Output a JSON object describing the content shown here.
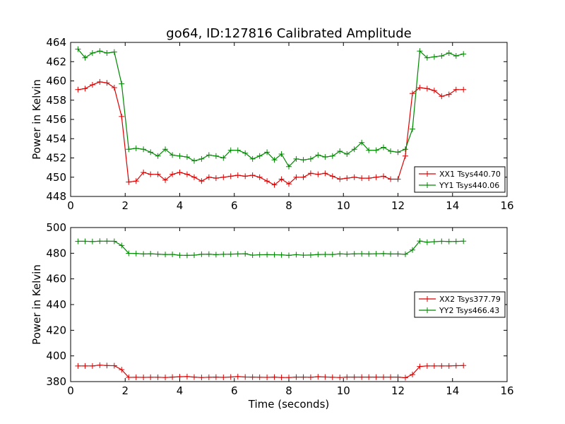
{
  "chart_data": [
    {
      "type": "line",
      "title": "go64, ID:127816 Calibrated Amplitude",
      "xlabel": "",
      "ylabel": "Power in Kelvin",
      "xlim": [
        0,
        16
      ],
      "ylim": [
        448,
        464
      ],
      "xticks": [
        0,
        2,
        4,
        6,
        8,
        10,
        12,
        14,
        16
      ],
      "yticks": [
        448,
        450,
        452,
        454,
        456,
        458,
        460,
        462,
        464
      ],
      "grid": false,
      "legend_position": "lower-right",
      "x": [
        0.27,
        0.53,
        0.8,
        1.07,
        1.33,
        1.6,
        1.87,
        2.13,
        2.4,
        2.67,
        2.93,
        3.2,
        3.47,
        3.73,
        4.0,
        4.27,
        4.53,
        4.8,
        5.07,
        5.33,
        5.6,
        5.87,
        6.13,
        6.4,
        6.67,
        6.93,
        7.2,
        7.47,
        7.73,
        8.0,
        8.27,
        8.53,
        8.8,
        9.07,
        9.33,
        9.6,
        9.87,
        10.13,
        10.4,
        10.67,
        10.93,
        11.2,
        11.47,
        11.73,
        12.0,
        12.27,
        12.53,
        12.8,
        13.07,
        13.33,
        13.6,
        13.87,
        14.13,
        14.4
      ],
      "series": [
        {
          "name": "XX1 Tsys440.70",
          "color": "#dd0000",
          "values": [
            459.1,
            459.2,
            459.6,
            459.9,
            459.8,
            459.3,
            456.3,
            449.5,
            449.6,
            450.5,
            450.3,
            450.3,
            449.7,
            450.3,
            450.5,
            450.3,
            450.0,
            449.6,
            450.0,
            449.9,
            450.0,
            450.1,
            450.2,
            450.1,
            450.2,
            450.0,
            449.6,
            449.2,
            449.8,
            449.3,
            450.0,
            450.0,
            450.4,
            450.3,
            450.4,
            450.1,
            449.8,
            449.9,
            450.0,
            449.9,
            449.9,
            450.0,
            450.1,
            449.8,
            449.8,
            452.2,
            458.7,
            459.3,
            459.2,
            459.0,
            458.4,
            458.6,
            459.1,
            459.1
          ]
        },
        {
          "name": "YY1 Tsys440.06",
          "color": "#008800",
          "values": [
            463.3,
            462.4,
            462.9,
            463.1,
            462.9,
            463.0,
            459.7,
            452.9,
            453.0,
            452.9,
            452.6,
            452.2,
            452.9,
            452.3,
            452.2,
            452.1,
            451.7,
            451.9,
            452.3,
            452.2,
            452.0,
            452.8,
            452.8,
            452.5,
            451.9,
            452.2,
            452.6,
            451.8,
            452.4,
            451.1,
            451.9,
            451.8,
            451.9,
            452.3,
            452.1,
            452.2,
            452.7,
            452.4,
            452.9,
            453.6,
            452.8,
            452.8,
            453.1,
            452.7,
            452.6,
            452.9,
            455.0,
            463.1,
            462.4,
            462.5,
            462.6,
            462.9,
            462.6,
            462.8
          ]
        }
      ]
    },
    {
      "type": "line",
      "title": "",
      "xlabel": "Time (seconds)",
      "ylabel": "Power in Kelvin",
      "xlim": [
        0,
        16
      ],
      "ylim": [
        380,
        500
      ],
      "xticks": [
        0,
        2,
        4,
        6,
        8,
        10,
        12,
        14,
        16
      ],
      "yticks": [
        380,
        400,
        420,
        440,
        460,
        480,
        500
      ],
      "grid": false,
      "legend_position": "center-right",
      "x": [
        0.27,
        0.53,
        0.8,
        1.07,
        1.33,
        1.6,
        1.87,
        2.13,
        2.4,
        2.67,
        2.93,
        3.2,
        3.47,
        3.73,
        4.0,
        4.27,
        4.53,
        4.8,
        5.07,
        5.33,
        5.6,
        5.87,
        6.13,
        6.4,
        6.67,
        6.93,
        7.2,
        7.47,
        7.73,
        8.0,
        8.27,
        8.53,
        8.8,
        9.07,
        9.33,
        9.6,
        9.87,
        10.13,
        10.4,
        10.67,
        10.93,
        11.2,
        11.47,
        11.73,
        12.0,
        12.27,
        12.53,
        12.8,
        13.07,
        13.33,
        13.6,
        13.87,
        14.13,
        14.4
      ],
      "series": [
        {
          "name": "XX2 Tsys377.79",
          "color": "#dd0000",
          "values": [
            392.2,
            392.2,
            392.2,
            392.8,
            392.5,
            392.4,
            389.3,
            383.3,
            383.4,
            383.3,
            383.4,
            383.4,
            383.2,
            383.5,
            383.8,
            383.9,
            383.5,
            383.2,
            383.4,
            383.5,
            383.3,
            383.6,
            383.9,
            383.6,
            383.5,
            383.4,
            383.3,
            383.5,
            383.2,
            383.2,
            383.5,
            383.5,
            383.4,
            383.8,
            383.6,
            383.4,
            383.2,
            383.5,
            383.5,
            383.5,
            383.5,
            383.5,
            383.5,
            383.5,
            383.5,
            383.0,
            385.5,
            391.8,
            392.2,
            392.2,
            392.2,
            392.2,
            392.4,
            392.5
          ]
        },
        {
          "name": "YY2 Tsys466.43",
          "color": "#008800",
          "values": [
            489.3,
            489.3,
            489.1,
            489.4,
            489.4,
            489.3,
            486.0,
            479.9,
            479.8,
            479.4,
            479.6,
            479.3,
            479.0,
            479.1,
            478.4,
            478.3,
            478.5,
            479.2,
            479.3,
            478.9,
            479.2,
            479.3,
            479.4,
            479.6,
            478.5,
            478.8,
            478.9,
            478.8,
            478.7,
            478.3,
            478.9,
            478.5,
            478.6,
            479.0,
            479.1,
            479.0,
            479.5,
            479.3,
            479.5,
            479.6,
            479.4,
            479.6,
            479.7,
            479.4,
            479.4,
            479.2,
            482.5,
            489.5,
            488.6,
            489.0,
            489.3,
            489.1,
            489.2,
            489.4
          ]
        }
      ]
    }
  ]
}
